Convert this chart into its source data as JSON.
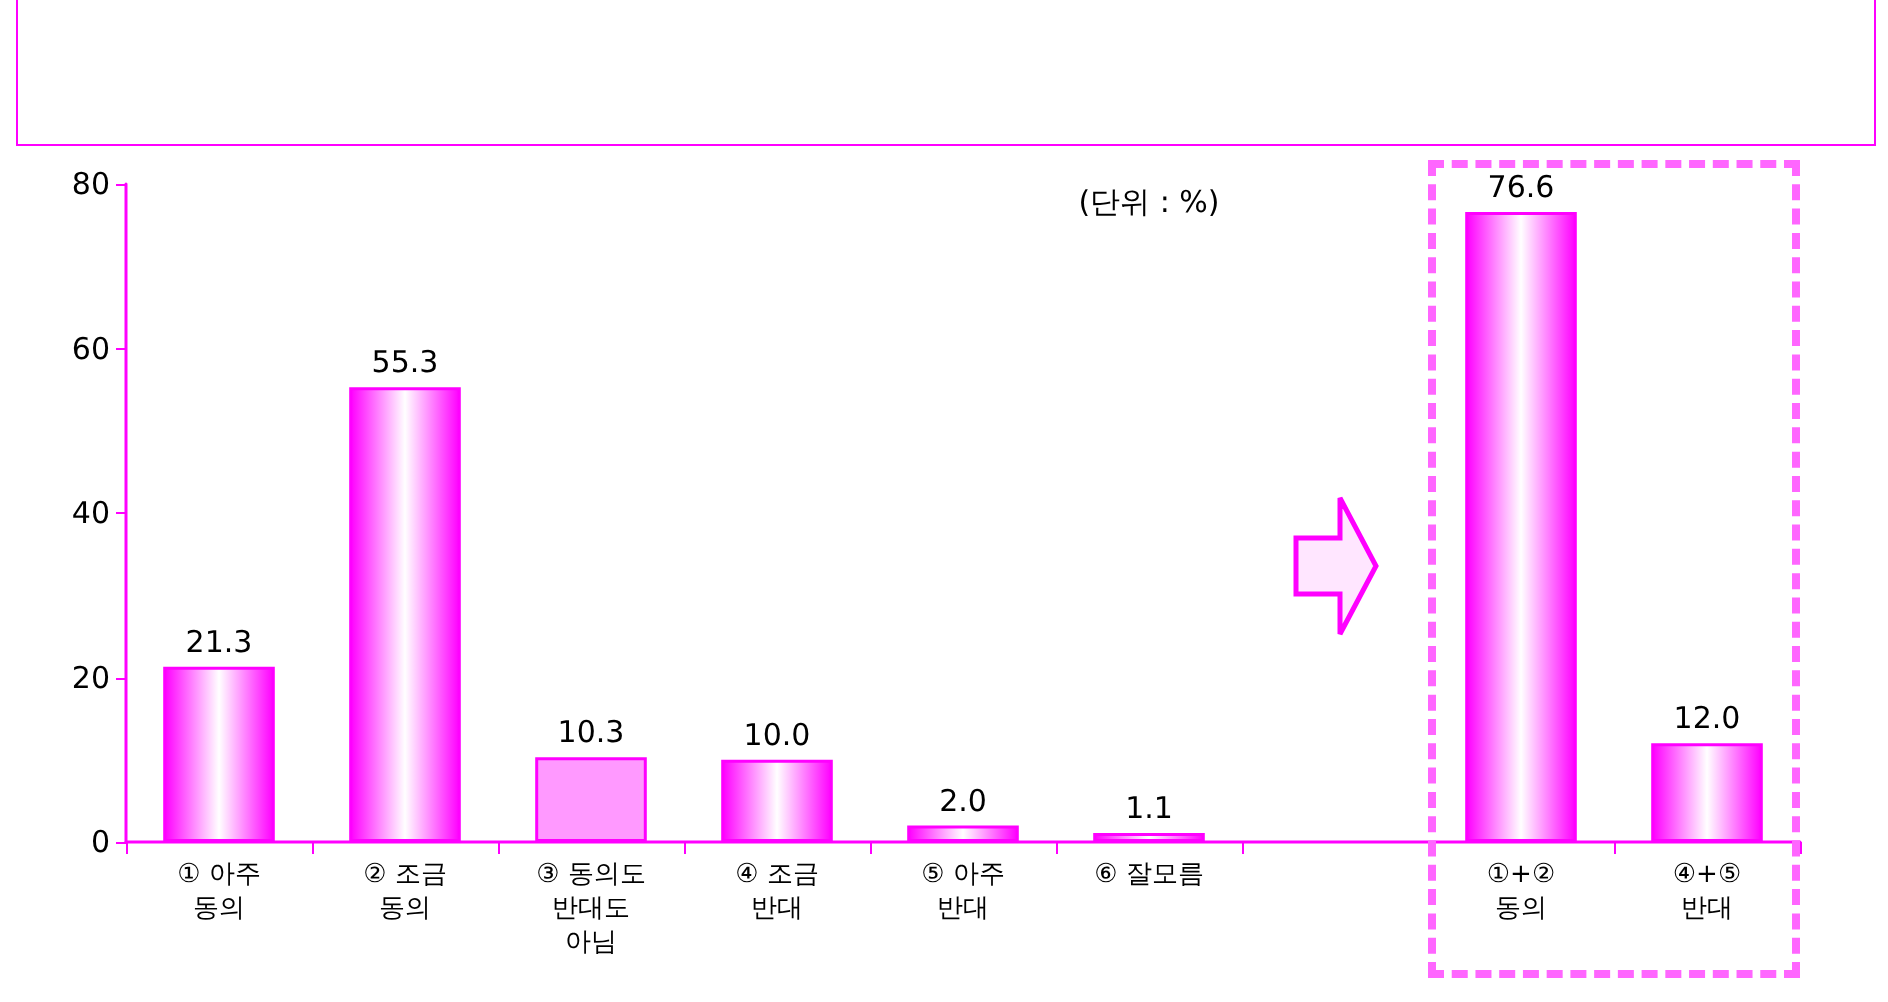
{
  "chart_data": {
    "type": "bar",
    "categories": [
      "① 아주\n동의",
      "② 조금\n동의",
      "③ 동의도\n반대도\n아님",
      "④ 조금\n반대",
      "⑤ 아주\n반대",
      "⑥ 잘모름",
      null,
      "①+②\n동의",
      "④+⑤\n반대"
    ],
    "values": [
      21.3,
      55.3,
      10.3,
      10.0,
      2.0,
      1.1,
      null,
      76.6,
      12.0
    ],
    "colors": [
      "#ff00ff",
      "#ff00ff",
      "#ff99ff",
      "#ff00ff",
      "#ff00ff",
      "#ff00ff",
      "#ff00ff",
      "#ff00ff",
      "#ff00ff"
    ],
    "value_labels": [
      "21.3",
      "55.3",
      "10.3",
      "10.0",
      "2.0",
      "1.1",
      null,
      "76.6",
      "12.0"
    ],
    "ylim": [
      0,
      80
    ],
    "yticks": [
      0,
      20,
      40,
      60,
      80
    ],
    "annotations": [
      "(단위 : %)"
    ]
  }
}
